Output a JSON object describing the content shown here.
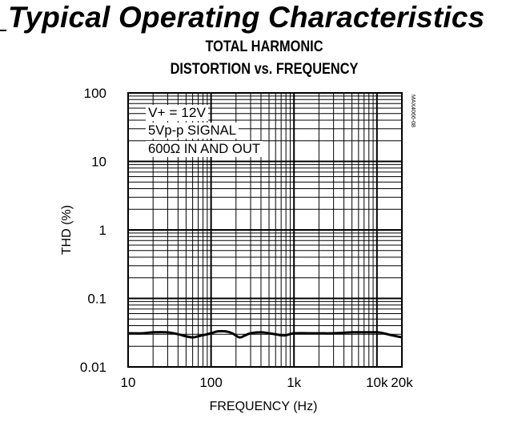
{
  "page": {
    "heading": "Typical Operating Characteristics"
  },
  "chart_data": {
    "type": "line",
    "title_lines": [
      "TOTAL HARMONIC",
      "DISTORTION vs. FREQUENCY"
    ],
    "xlabel": "FREQUENCY (Hz)",
    "ylabel": "THD (%)",
    "x_scale": "log",
    "y_scale": "log",
    "xlim": [
      10,
      20000
    ],
    "ylim": [
      0.01,
      100
    ],
    "x_ticks": [
      {
        "value": 10,
        "label": "10"
      },
      {
        "value": 100,
        "label": "100"
      },
      {
        "value": 1000,
        "label": "1k"
      },
      {
        "value": 10000,
        "label": "10k"
      },
      {
        "value": 20000,
        "label": "20k"
      }
    ],
    "y_ticks": [
      {
        "value": 100,
        "label": "100"
      },
      {
        "value": 10,
        "label": "10"
      },
      {
        "value": 1,
        "label": "1"
      },
      {
        "value": 0.1,
        "label": "0.1"
      },
      {
        "value": 0.01,
        "label": "0.01"
      }
    ],
    "grid": true,
    "annotations": [
      "V+ = 12V",
      "5Vp-p SIGNAL",
      "600Ω IN AND OUT"
    ],
    "figure_code": "MAX4066-08",
    "series": [
      {
        "x": [
          10,
          15,
          20,
          30,
          40,
          50,
          60,
          70,
          80,
          100,
          120,
          150,
          180,
          220,
          260,
          300,
          400,
          500,
          600,
          700,
          800,
          1000,
          1500,
          2000,
          3000,
          5000,
          7000,
          10000,
          12000,
          15000,
          20000
        ],
        "y": [
          0.031,
          0.031,
          0.032,
          0.032,
          0.03,
          0.028,
          0.027,
          0.028,
          0.029,
          0.031,
          0.033,
          0.033,
          0.031,
          0.027,
          0.029,
          0.031,
          0.032,
          0.031,
          0.03,
          0.029,
          0.029,
          0.031,
          0.031,
          0.031,
          0.031,
          0.032,
          0.032,
          0.032,
          0.031,
          0.029,
          0.027
        ]
      }
    ]
  }
}
